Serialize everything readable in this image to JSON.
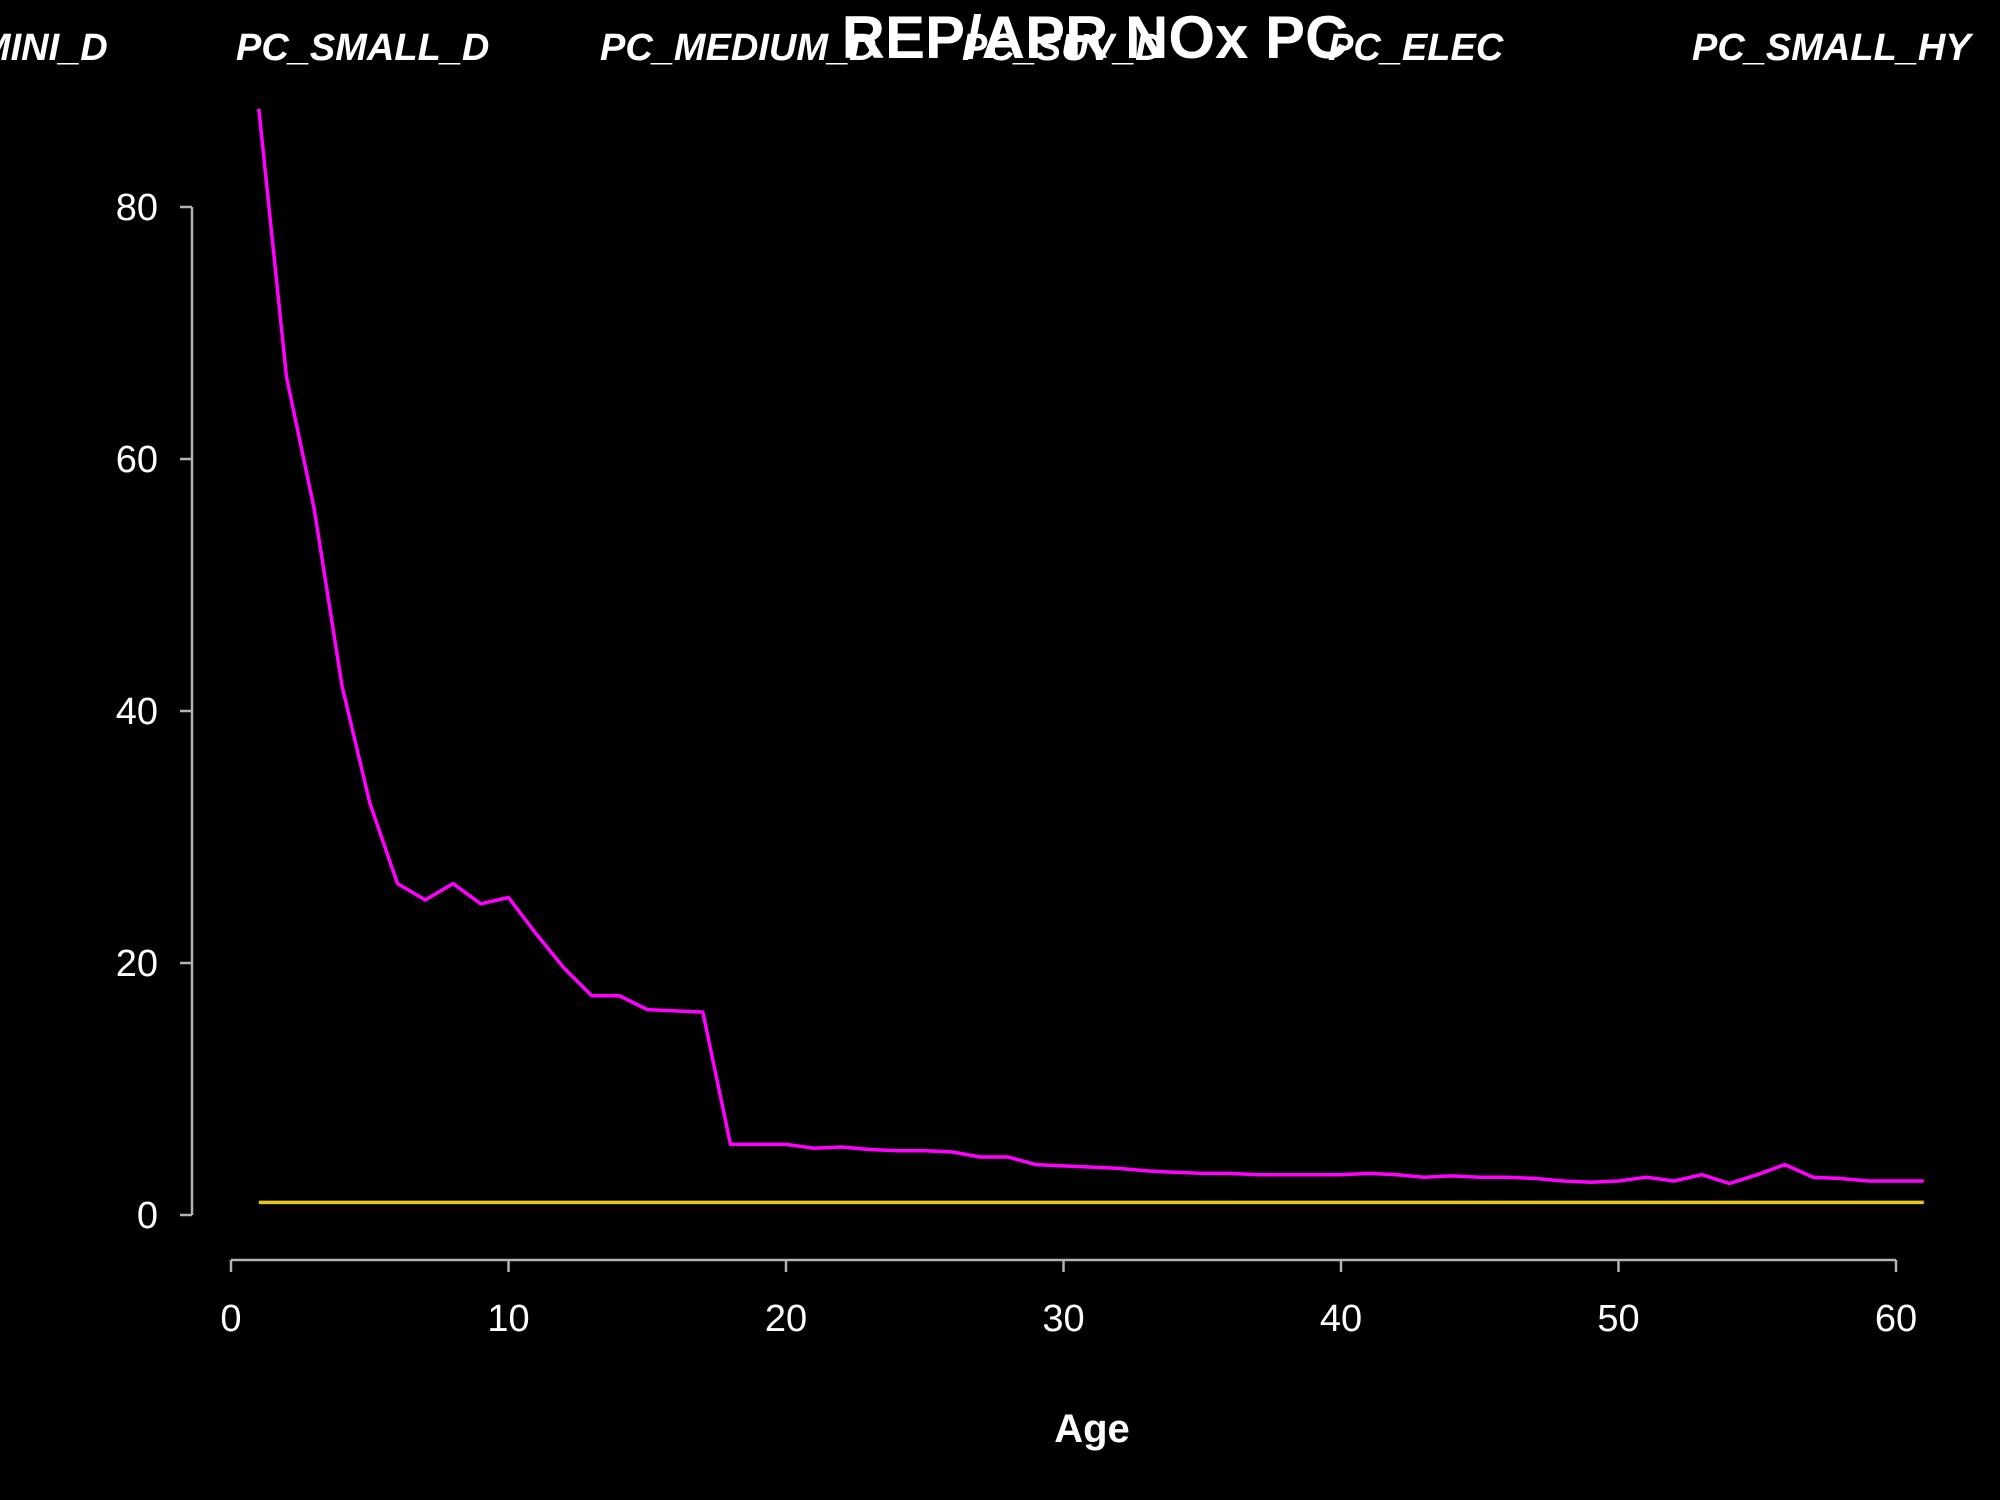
{
  "chart_data": {
    "type": "line",
    "title": "REP/APR NOx  PC",
    "xlabel": "Age",
    "ylabel": "",
    "xlim": [
      0,
      61
    ],
    "ylim": [
      0,
      88
    ],
    "x_ticks": [
      0,
      10,
      20,
      30,
      40,
      50,
      60
    ],
    "y_ticks": [
      0,
      20,
      40,
      60,
      80
    ],
    "grid": false,
    "legend_labels": [
      "PC_MINI_D",
      "PC_SMALL_D",
      "PC_MEDIUM_D",
      "PC_SUV_D",
      "PC_ELEC",
      "PC_SMALL_HY"
    ],
    "legend_placement": "top",
    "x": [
      1,
      2,
      3,
      4,
      5,
      6,
      7,
      8,
      9,
      10,
      11,
      12,
      13,
      14,
      15,
      16,
      17,
      18,
      19,
      20,
      21,
      22,
      23,
      24,
      25,
      26,
      27,
      28,
      29,
      30,
      31,
      32,
      33,
      34,
      35,
      36,
      37,
      38,
      39,
      40,
      41,
      42,
      43,
      44,
      45,
      46,
      47,
      48,
      49,
      50,
      51,
      52,
      53,
      54,
      55,
      56,
      57,
      58,
      59,
      60,
      61
    ],
    "series": [
      {
        "color": "#ff00ff",
        "values": [
          87.8,
          66.5,
          56,
          42,
          32.7,
          26.3,
          25,
          26.3,
          24.7,
          25.2,
          22.3,
          19.6,
          17.4,
          17.4,
          16.3,
          16.2,
          16.1,
          5.6,
          5.6,
          5.6,
          5.3,
          5.4,
          5.2,
          5.1,
          5.1,
          5,
          4.6,
          4.6,
          4,
          3.9,
          3.8,
          3.7,
          3.5,
          3.4,
          3.3,
          3.3,
          3.2,
          3.2,
          3.2,
          3.2,
          3.3,
          3.2,
          3,
          3.1,
          3,
          3,
          2.9,
          2.7,
          2.6,
          2.7,
          3,
          2.7,
          3.2,
          2.5,
          3.2,
          4,
          3,
          2.9,
          2.7,
          2.7,
          2.7
        ]
      },
      {
        "color": "#e6c619",
        "values": [
          1,
          1,
          1,
          1,
          1,
          1,
          1,
          1,
          1,
          1,
          1,
          1,
          1,
          1,
          1,
          1,
          1,
          1,
          1,
          1,
          1,
          1,
          1,
          1,
          1,
          1,
          1,
          1,
          1,
          1,
          1,
          1,
          1,
          1,
          1,
          1,
          1,
          1,
          1,
          1,
          1,
          1,
          1,
          1,
          1,
          1,
          1,
          1,
          1,
          1,
          1,
          1,
          1,
          1,
          1,
          1,
          1,
          1,
          1,
          1,
          1
        ]
      }
    ]
  }
}
